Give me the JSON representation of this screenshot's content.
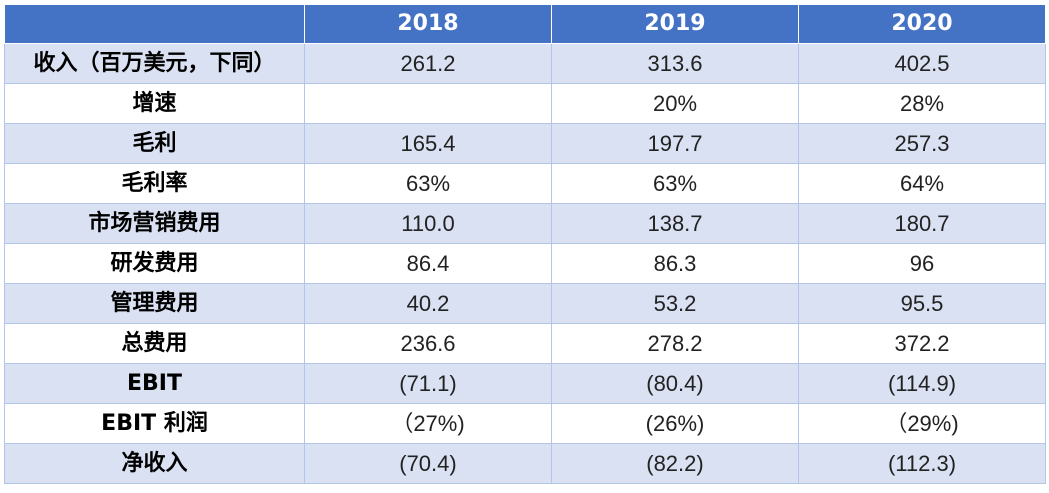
{
  "table": {
    "headers": [
      "",
      "2018",
      "2019",
      "2020"
    ],
    "rows": [
      {
        "label": "收入（百万美元，下同）",
        "values": [
          "261.2",
          "313.6",
          "402.5"
        ]
      },
      {
        "label": "增速",
        "values": [
          "",
          "20%",
          "28%"
        ]
      },
      {
        "label": "毛利",
        "values": [
          "165.4",
          "197.7",
          "257.3"
        ]
      },
      {
        "label": "毛利率",
        "values": [
          "63%",
          "63%",
          "64%"
        ]
      },
      {
        "label": "市场营销费用",
        "values": [
          "110.0",
          "138.7",
          "180.7"
        ]
      },
      {
        "label": "研发费用",
        "values": [
          "86.4",
          "86.3",
          "96"
        ]
      },
      {
        "label": "管理费用",
        "values": [
          "40.2",
          "53.2",
          "95.5"
        ]
      },
      {
        "label": "总费用",
        "values": [
          "236.6",
          "278.2",
          "372.2"
        ]
      },
      {
        "label": "EBIT",
        "values": [
          "(71.1)",
          "(80.4)",
          "(114.9)"
        ]
      },
      {
        "label": "EBIT 利润",
        "values": [
          "（27%)",
          "(26%)",
          "（29%)"
        ]
      },
      {
        "label": "净收入",
        "values": [
          "(70.4)",
          "(82.2)",
          "(112.3)"
        ]
      }
    ]
  },
  "colors": {
    "header_bg": "#4472c4",
    "band_bg": "#d9e1f2",
    "border": "#b4c6e7"
  }
}
